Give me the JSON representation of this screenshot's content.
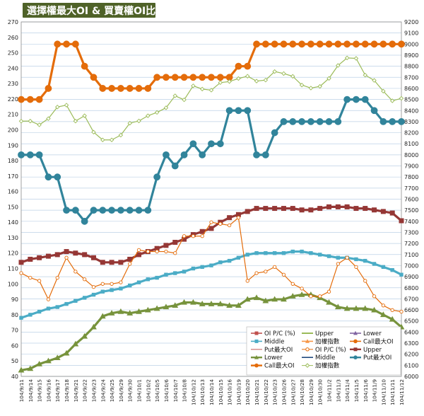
{
  "chart_data": {
    "type": "line",
    "title": "選擇權最大OI & 買賣權OI比",
    "x": [
      "104/9/11",
      "104/9/14",
      "104/9/15",
      "104/9/16",
      "104/9/17",
      "104/9/18",
      "104/9/21",
      "104/9/22",
      "104/9/23",
      "104/9/24",
      "104/9/25",
      "104/9/29",
      "104/9/30",
      "104/10/1",
      "104/10/2",
      "104/10/5",
      "104/10/6",
      "104/10/7",
      "104/10/8",
      "104/10/12",
      "104/10/13",
      "104/10/14",
      "104/10/15",
      "104/10/16",
      "104/10/19",
      "104/10/20",
      "104/10/21",
      "104/10/22",
      "104/10/23",
      "104/10/26",
      "104/10/27",
      "104/10/28",
      "104/10/29",
      "104/10/30",
      "104/11/2",
      "104/11/3",
      "104/11/4",
      "104/11/5",
      "104/11/6",
      "104/11/9",
      "104/11/10",
      "104/11/11",
      "104/11/12"
    ],
    "x_tick_labels": [
      "104/9/11",
      "104/9/14",
      "104/9/15",
      "104/9/16",
      "104/9/17",
      "104/9/18",
      "104/9/21",
      "104/9/22",
      "104/9/23",
      "104/9/24",
      "104/9/25",
      "104/9/29",
      "104/9/30",
      "104/10/1",
      "104/10/2",
      "104/10/5",
      "104/10/6",
      "104/10/7",
      "104/10/8",
      "104/10/12",
      "104/10/13",
      "104/10/14",
      "104/10/15",
      "104/10/16",
      "104/10/19",
      "104/10/20",
      "104/10/21",
      "104/10/22",
      "104/10/23",
      "104/10/26",
      "104/10/27",
      "104/10/28",
      "104/10/29",
      "104/10/30",
      "104/11/2",
      "104/11/3",
      "104/11/4",
      "104/11/5",
      "104/11/6",
      "104/11/9",
      "104/11/10",
      "104/11/11",
      "104/11/12"
    ],
    "y_left": {
      "min": 40,
      "max": 270,
      "step": 10
    },
    "y_right": {
      "min": 6000,
      "max": 9200,
      "step": 100
    },
    "grid": true,
    "legend_position": "bottom-right",
    "legend": [
      "OI P/C (%)",
      "Upper",
      "Lower",
      "Middle",
      "加權指數",
      "Call最大OI",
      "Put最大OI",
      "OI P/C (%)",
      "Upper",
      "Lower",
      "Middle",
      "Put最大OI",
      "Call最大OI",
      "加權指數"
    ],
    "series": [
      {
        "name": "Call最大OI",
        "axis": "right",
        "color": "#e46c0a",
        "marker": "circle",
        "values": [
          8500,
          8500,
          8500,
          8600,
          9000,
          9000,
          9000,
          8800,
          8700,
          8600,
          8600,
          8600,
          8600,
          8600,
          8600,
          8700,
          8700,
          8700,
          8700,
          8700,
          8700,
          8700,
          8700,
          8700,
          8800,
          8800,
          9000,
          9000,
          9000,
          9000,
          9000,
          9000,
          9000,
          9000,
          9000,
          9000,
          9000,
          9000,
          9000,
          9000,
          9000,
          9000,
          9000
        ]
      },
      {
        "name": "Put最大OI",
        "axis": "right",
        "color": "#31849b",
        "marker": "circle",
        "values": [
          8000,
          8000,
          8000,
          7800,
          7800,
          7500,
          7500,
          7400,
          7500,
          7500,
          7500,
          7500,
          7500,
          7500,
          7500,
          7800,
          8000,
          7900,
          8000,
          8100,
          8000,
          8100,
          8100,
          8400,
          8400,
          8400,
          8000,
          8000,
          8200,
          8300,
          8300,
          8300,
          8300,
          8300,
          8300,
          8300,
          8500,
          8500,
          8500,
          8400,
          8300,
          8300,
          8300
        ]
      },
      {
        "name": "加權指數",
        "axis": "right",
        "color": "#9bbb59",
        "marker": "diamond",
        "values": [
          8304,
          8305,
          8271,
          8327,
          8432,
          8449,
          8305,
          8353,
          8205,
          8135,
          8135,
          8178,
          8286,
          8306,
          8353,
          8383,
          8425,
          8533,
          8497,
          8623,
          8594,
          8584,
          8652,
          8662,
          8689,
          8710,
          8666,
          8675,
          8752,
          8734,
          8709,
          8630,
          8603,
          8618,
          8690,
          8807,
          8875,
          8871,
          8720,
          8672,
          8575,
          8488,
          8510
        ]
      },
      {
        "name": "Upper",
        "axis": "left",
        "color": "#953735",
        "marker": "square",
        "values": [
          114,
          116,
          117,
          118,
          119,
          121,
          120,
          119,
          117,
          114,
          114,
          114,
          116,
          119,
          121,
          123,
          125,
          127,
          129,
          132,
          134,
          136,
          140,
          143,
          145,
          147,
          149,
          149,
          149,
          149,
          149,
          148,
          148,
          149,
          150,
          150,
          150,
          149,
          149,
          148,
          147,
          146,
          141
        ]
      },
      {
        "name": "Middle",
        "axis": "left",
        "color": "#4bacc6",
        "marker": "square",
        "values": [
          78,
          80,
          82,
          84,
          85,
          87,
          89,
          91,
          93,
          95,
          96,
          97,
          99,
          101,
          103,
          104,
          106,
          107,
          108,
          110,
          111,
          112,
          114,
          115,
          117,
          119,
          120,
          120,
          120,
          120,
          121,
          121,
          120,
          119,
          118,
          117,
          117,
          116,
          115,
          113,
          111,
          109,
          106
        ]
      },
      {
        "name": "Lower",
        "axis": "left",
        "color": "#77933c",
        "marker": "triangle",
        "values": [
          44,
          45,
          48,
          50,
          52,
          55,
          61,
          66,
          72,
          79,
          81,
          82,
          81,
          82,
          83,
          84,
          85,
          86,
          88,
          88,
          87,
          87,
          87,
          86,
          86,
          90,
          91,
          89,
          90,
          90,
          92,
          93,
          93,
          91,
          88,
          85,
          84,
          84,
          84,
          83,
          80,
          77,
          72
        ]
      },
      {
        "name": "OI P/C (%)",
        "axis": "left",
        "color": "#e46c0a",
        "marker": "circle-open",
        "values": [
          107,
          104,
          102,
          90,
          104,
          117,
          108,
          103,
          98,
          100,
          100,
          101,
          113,
          122,
          121,
          121,
          121,
          120,
          131,
          131,
          131,
          140,
          139,
          138,
          143,
          102,
          107,
          108,
          111,
          106,
          100,
          97,
          92,
          92,
          95,
          113,
          117,
          111,
          102,
          92,
          86,
          83,
          82
        ]
      }
    ]
  }
}
